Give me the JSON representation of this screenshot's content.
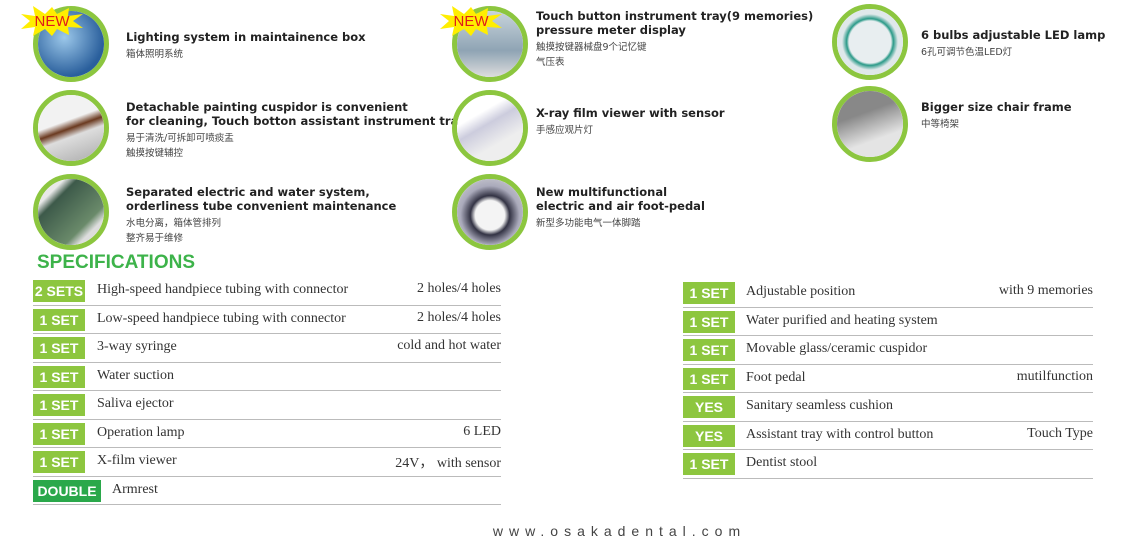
{
  "features": [
    {
      "title": "Lighting system in maintainence box",
      "cn": "箱体照明系统",
      "new": true,
      "image": "maintenance-box-photo"
    },
    {
      "title": "Detachable painting cuspidor is convenient\nfor cleaning,  Touch botton  assistant instrument tray",
      "cn": "易于清洗/可拆卸可喷痰盂\n触摸按键辅控",
      "new": false,
      "image": "cuspidor-photo"
    },
    {
      "title": "Separated electric and water system,\norderliness  tube convenient maintenance",
      "cn": "水电分离，箱体管排列\n整齐易于维修",
      "new": false,
      "image": "water-system-photo"
    },
    {
      "title": "Touch button instrument tray(9 memories)\npressure meter display",
      "cn": "触摸按键器械盘9个记忆键\n气压表",
      "new": true,
      "image": "instrument-tray-photo"
    },
    {
      "title": "X-ray film viewer with sensor",
      "cn": "手感应观片灯",
      "new": false,
      "image": "film-viewer-photo"
    },
    {
      "title": "New multifunctional\nelectric and air foot-pedal",
      "cn": "新型多功能电气一体脚踏",
      "new": false,
      "image": "foot-pedal-photo"
    },
    {
      "title": "6 bulbs adjustable LED lamp",
      "cn": "6孔可调节色温LED灯",
      "new": false,
      "image": "led-lamp-photo"
    },
    {
      "title": "Bigger size chair frame",
      "cn": "中等椅架",
      "new": false,
      "image": "chair-frame-photo"
    }
  ],
  "new_label": "NEW",
  "spec_title": "SPECIFICATIONS",
  "left_specs": [
    {
      "qty": "2 SETS",
      "item": "High-speed handpiece tubing with connector",
      "value": "2 holes/4 holes"
    },
    {
      "qty": "1 SET",
      "item": "Low-speed handpiece tubing with connector",
      "value": "2 holes/4 holes"
    },
    {
      "qty": "1 SET",
      "item": "3-way syringe",
      "value": "cold and hot water"
    },
    {
      "qty": "1 SET",
      "item": "Water suction",
      "value": ""
    },
    {
      "qty": "1 SET",
      "item": "Saliva ejector",
      "value": ""
    },
    {
      "qty": "1 SET",
      "item": "Operation lamp",
      "value": "6 LED"
    },
    {
      "qty": "1 SET",
      "item": "X-film viewer",
      "value": "24V， with sensor"
    },
    {
      "qty": "DOUBLE",
      "item": "Armrest",
      "value": ""
    }
  ],
  "right_specs": [
    {
      "qty": "1 SET",
      "item": "Adjustable  position",
      "value": "with 9 memories"
    },
    {
      "qty": "1 SET",
      "item": "Water purified and heating system",
      "value": ""
    },
    {
      "qty": "1 SET",
      "item": "Movable glass/ceramic cuspidor",
      "value": ""
    },
    {
      "qty": "1 SET",
      "item": "Foot pedal",
      "value": "mutilfunction"
    },
    {
      "qty": "YES",
      "item": "Sanitary seamless cushion",
      "value": ""
    },
    {
      "qty": "YES",
      "item": "Assistant tray with control button",
      "value": "Touch Type"
    },
    {
      "qty": "1 SET",
      "item": "Dentist stool",
      "value": ""
    }
  ],
  "footer": "www.osakadental.com",
  "colors": {
    "green": "#8dc63f",
    "dark_green": "#2aa84a",
    "title_green": "#3db34a",
    "new_red": "#e01b1b",
    "star_yellow": "#ffee00"
  }
}
